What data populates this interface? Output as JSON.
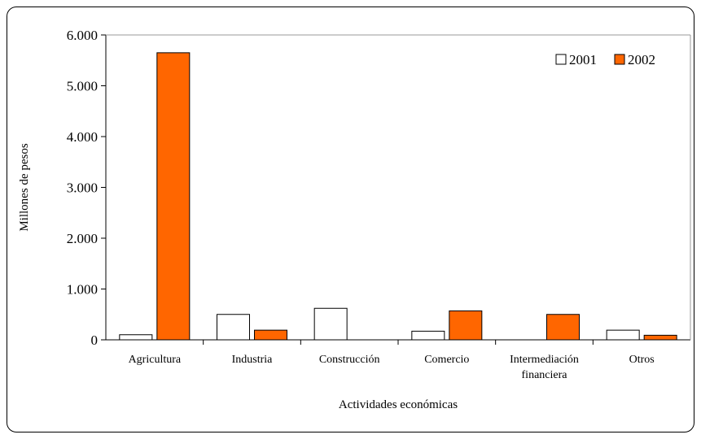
{
  "chart_data": {
    "type": "bar",
    "categories": [
      [
        "Agricultura"
      ],
      [
        "Industria"
      ],
      [
        "Construcción"
      ],
      [
        "Comercio"
      ],
      [
        "Intermediación",
        "financiera"
      ],
      [
        "Otros"
      ]
    ],
    "series": [
      {
        "name": "2001",
        "values": [
          100,
          500,
          620,
          170,
          0,
          190
        ],
        "color": "#ffffff"
      },
      {
        "name": "2002",
        "values": [
          5650,
          190,
          0,
          570,
          500,
          90
        ],
        "color": "#ff6600"
      }
    ],
    "yticks": [
      0,
      1000,
      2000,
      3000,
      4000,
      5000,
      6000
    ],
    "ytick_labels": [
      "0",
      "1.000",
      "2.000",
      "3.000",
      "4.000",
      "5.000",
      "6.000"
    ],
    "ylim": [
      0,
      6000
    ],
    "xlabel": "Actividades económicas",
    "ylabel": "Millones de pesos",
    "legend_position": "top-right",
    "grid": false
  }
}
